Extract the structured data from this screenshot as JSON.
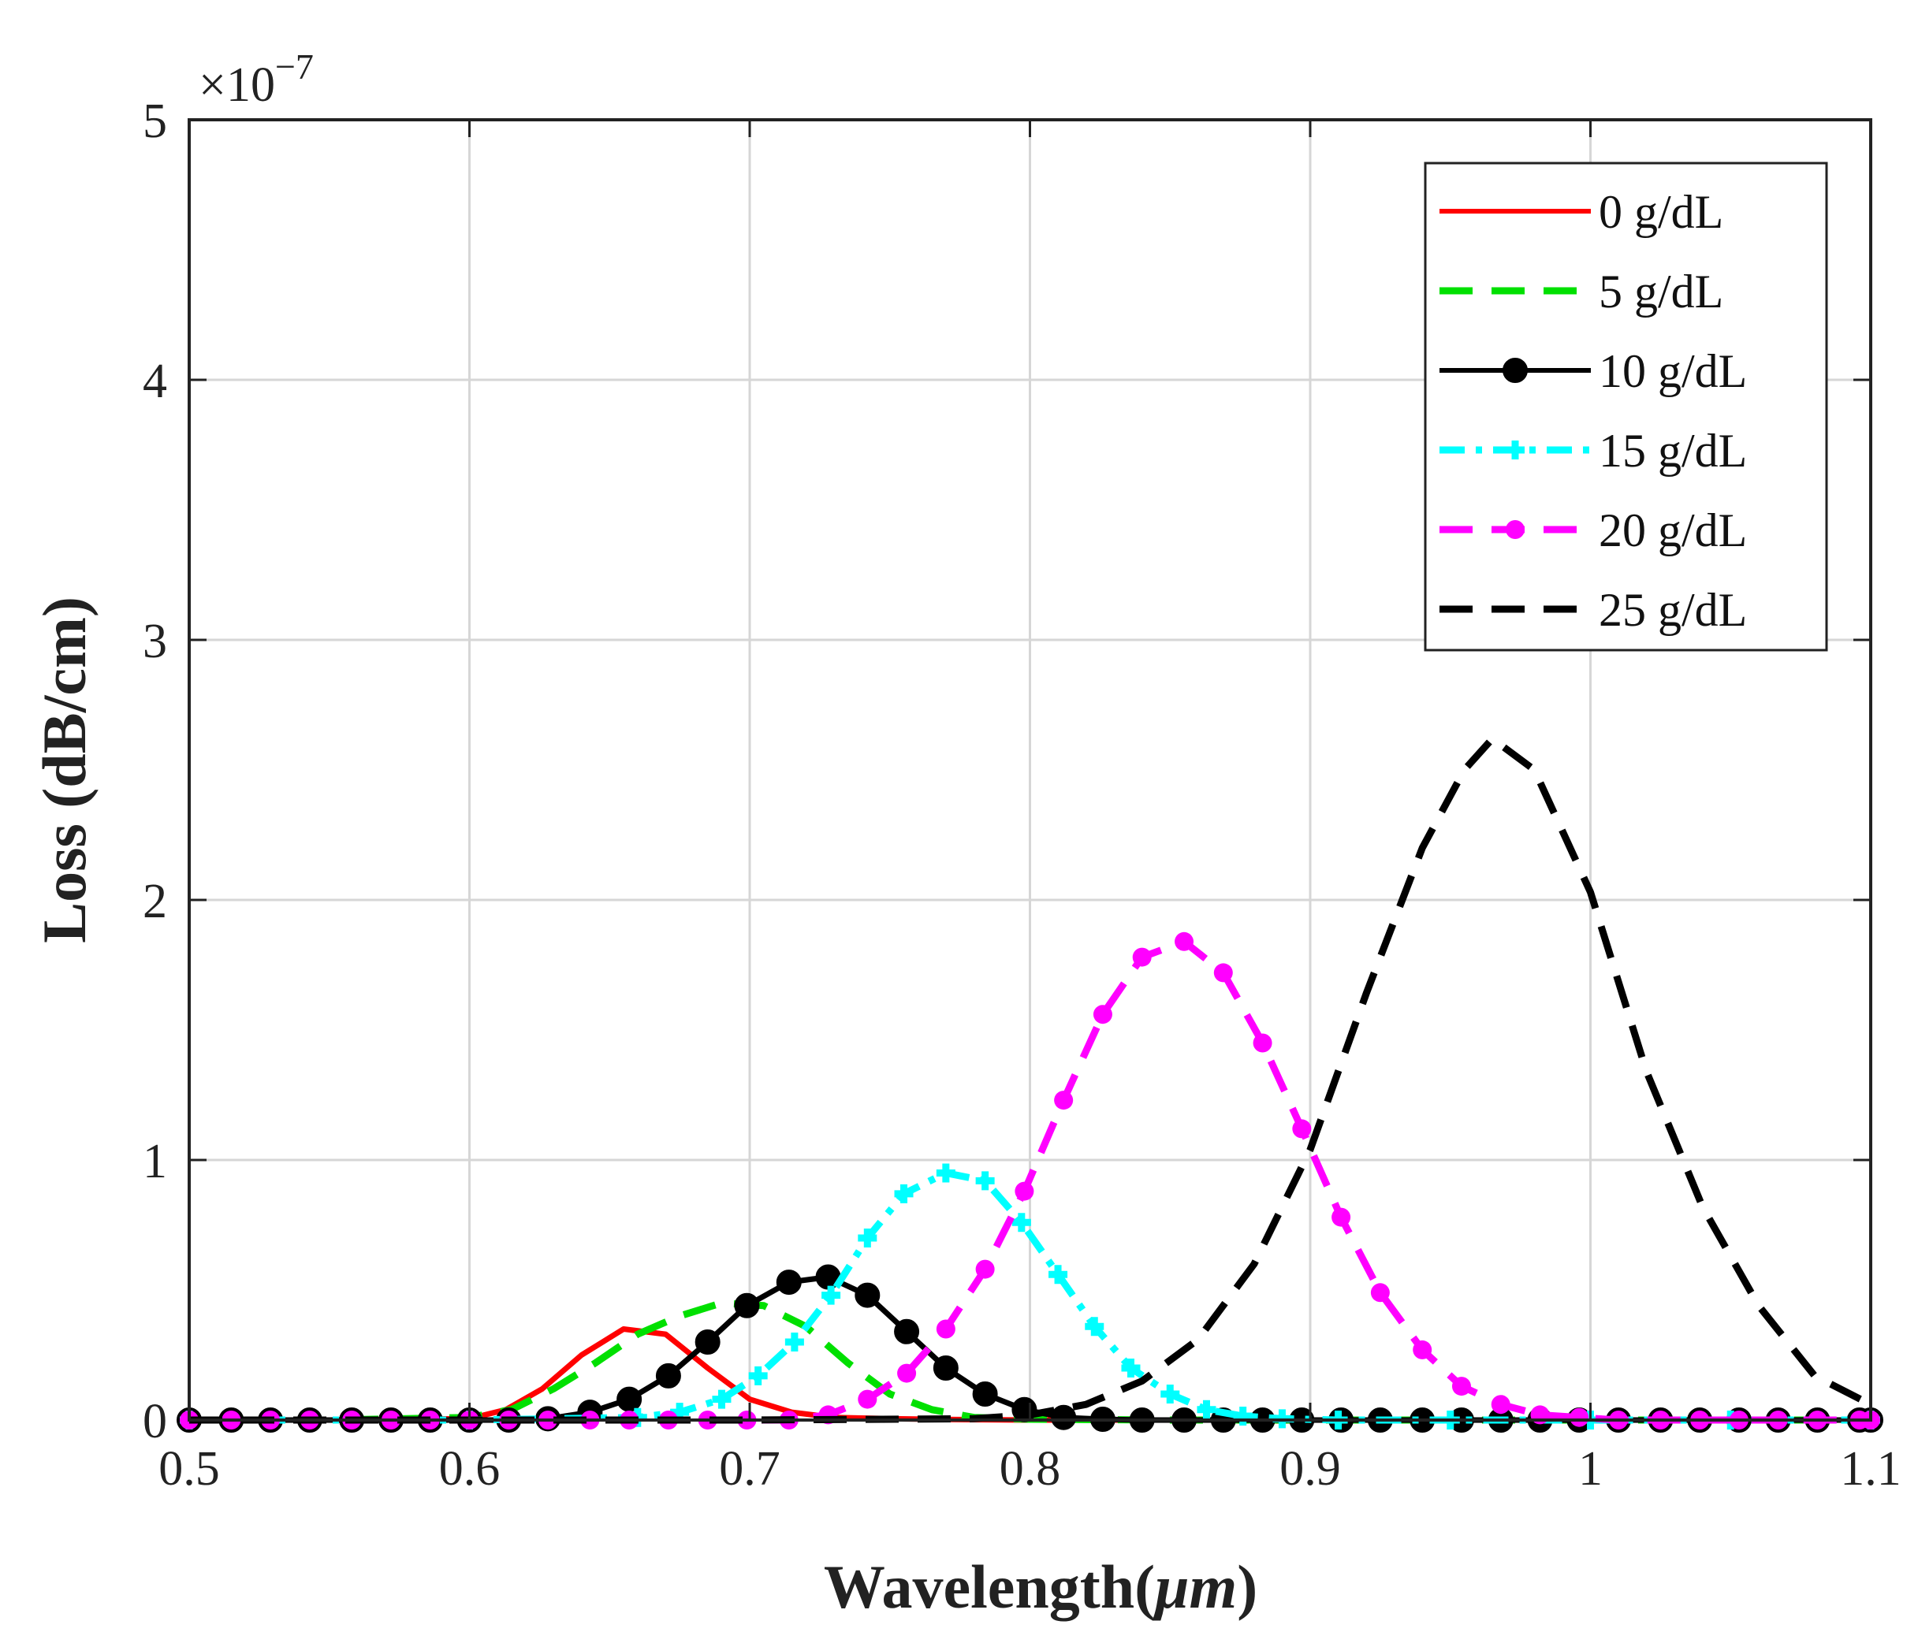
{
  "chart_data": {
    "type": "line",
    "xlabel": "Wavelength(",
    "xlabel_unit": "μm",
    "xlabel_close": ")",
    "ylabel": "Loss (dB/cm)",
    "y_multiplier": "×10",
    "y_exponent": "−7",
    "xlim": [
      0.5,
      1.1
    ],
    "ylim": [
      0,
      5
    ],
    "x_ticks": [
      "0.5",
      "0.6",
      "0.7",
      "0.8",
      "0.9",
      "1",
      "1.1"
    ],
    "y_ticks": [
      "0",
      "1",
      "2",
      "3",
      "4",
      "5"
    ],
    "grid": true,
    "legend_position": "top-right",
    "series": [
      {
        "name": "0 g/dL",
        "color": "#ff0000",
        "style": "solid",
        "marker": "none",
        "x": [
          0.5,
          0.55,
          0.6,
          0.613,
          0.626,
          0.64,
          0.655,
          0.67,
          0.685,
          0.7,
          0.715,
          0.73,
          0.75,
          0.77,
          0.8,
          0.85,
          0.9,
          1.0,
          1.1
        ],
        "y": [
          0,
          0,
          0.005,
          0.04,
          0.12,
          0.25,
          0.35,
          0.33,
          0.2,
          0.08,
          0.03,
          0.01,
          0.005,
          0.002,
          0,
          0,
          0,
          0,
          0
        ]
      },
      {
        "name": "5 g/dL",
        "color": "#00e000",
        "style": "dashed",
        "marker": "none",
        "x": [
          0.5,
          0.55,
          0.6,
          0.615,
          0.63,
          0.645,
          0.66,
          0.675,
          0.69,
          0.705,
          0.72,
          0.735,
          0.75,
          0.765,
          0.78,
          0.8,
          0.85,
          0.9,
          1.0,
          1.1
        ],
        "y": [
          0,
          0,
          0.01,
          0.04,
          0.12,
          0.22,
          0.33,
          0.4,
          0.45,
          0.44,
          0.36,
          0.22,
          0.1,
          0.04,
          0.01,
          0.003,
          0,
          0,
          0,
          0
        ]
      },
      {
        "name": "10 g/dL",
        "color": "#000000",
        "style": "solid",
        "marker": "circle",
        "x": [
          0.5,
          0.515,
          0.529,
          0.543,
          0.558,
          0.572,
          0.586,
          0.6,
          0.614,
          0.628,
          0.643,
          0.657,
          0.671,
          0.685,
          0.699,
          0.714,
          0.728,
          0.742,
          0.756,
          0.77,
          0.784,
          0.798,
          0.812,
          0.826,
          0.84,
          0.855,
          0.869,
          0.883,
          0.897,
          0.911,
          0.925,
          0.94,
          0.954,
          0.968,
          0.982,
          0.996,
          1.01,
          1.025,
          1.039,
          1.053,
          1.067,
          1.081,
          1.096,
          1.1
        ],
        "y": [
          0,
          0,
          0,
          0,
          0,
          0,
          0,
          0,
          0,
          0.005,
          0.03,
          0.08,
          0.17,
          0.3,
          0.44,
          0.53,
          0.55,
          0.48,
          0.34,
          0.2,
          0.1,
          0.04,
          0.01,
          0.003,
          0,
          0,
          0,
          0,
          0,
          0,
          0,
          0,
          0,
          0,
          0,
          0,
          0,
          0,
          0,
          0,
          0,
          0,
          0,
          0
        ]
      },
      {
        "name": "15 g/dL",
        "color": "#00ffff",
        "style": "dashdot",
        "marker": "plus",
        "x": [
          0.5,
          0.6,
          0.66,
          0.675,
          0.69,
          0.703,
          0.716,
          0.729,
          0.742,
          0.755,
          0.77,
          0.784,
          0.797,
          0.81,
          0.823,
          0.836,
          0.85,
          0.863,
          0.876,
          0.89,
          0.91,
          0.95,
          1.0,
          1.05,
          1.1
        ],
        "y": [
          0,
          0,
          0.01,
          0.03,
          0.08,
          0.17,
          0.3,
          0.48,
          0.7,
          0.87,
          0.95,
          0.92,
          0.76,
          0.56,
          0.36,
          0.2,
          0.1,
          0.04,
          0.015,
          0.005,
          0,
          0,
          0,
          0,
          0
        ]
      },
      {
        "name": "20 g/dL",
        "color": "#ff00ff",
        "style": "dashed",
        "marker": "dot",
        "x": [
          0.5,
          0.515,
          0.529,
          0.543,
          0.558,
          0.572,
          0.586,
          0.6,
          0.614,
          0.628,
          0.643,
          0.657,
          0.671,
          0.685,
          0.699,
          0.714,
          0.728,
          0.742,
          0.756,
          0.77,
          0.784,
          0.798,
          0.812,
          0.826,
          0.84,
          0.855,
          0.869,
          0.883,
          0.897,
          0.911,
          0.925,
          0.94,
          0.954,
          0.968,
          0.982,
          0.996,
          1.01,
          1.025,
          1.039,
          1.053,
          1.067,
          1.081,
          1.096,
          1.1
        ],
        "y": [
          0,
          0,
          0,
          0,
          0,
          0,
          0,
          0,
          0,
          0,
          0,
          0,
          0,
          0,
          0,
          0,
          0.02,
          0.08,
          0.18,
          0.35,
          0.58,
          0.88,
          1.23,
          1.56,
          1.78,
          1.84,
          1.72,
          1.45,
          1.12,
          0.78,
          0.49,
          0.27,
          0.13,
          0.06,
          0.02,
          0.01,
          0,
          0,
          0,
          0,
          0,
          0,
          0,
          0
        ]
      },
      {
        "name": "25 g/dL",
        "color": "#000000",
        "style": "dashed",
        "marker": "none",
        "x": [
          0.5,
          0.7,
          0.78,
          0.8,
          0.82,
          0.84,
          0.86,
          0.88,
          0.9,
          0.92,
          0.94,
          0.955,
          0.965,
          0.98,
          1.0,
          1.02,
          1.04,
          1.06,
          1.08,
          1.1
        ],
        "y": [
          0,
          0,
          0.005,
          0.02,
          0.06,
          0.15,
          0.31,
          0.6,
          1.04,
          1.64,
          2.2,
          2.5,
          2.62,
          2.5,
          2.03,
          1.34,
          0.82,
          0.44,
          0.17,
          0.06
        ]
      }
    ]
  }
}
